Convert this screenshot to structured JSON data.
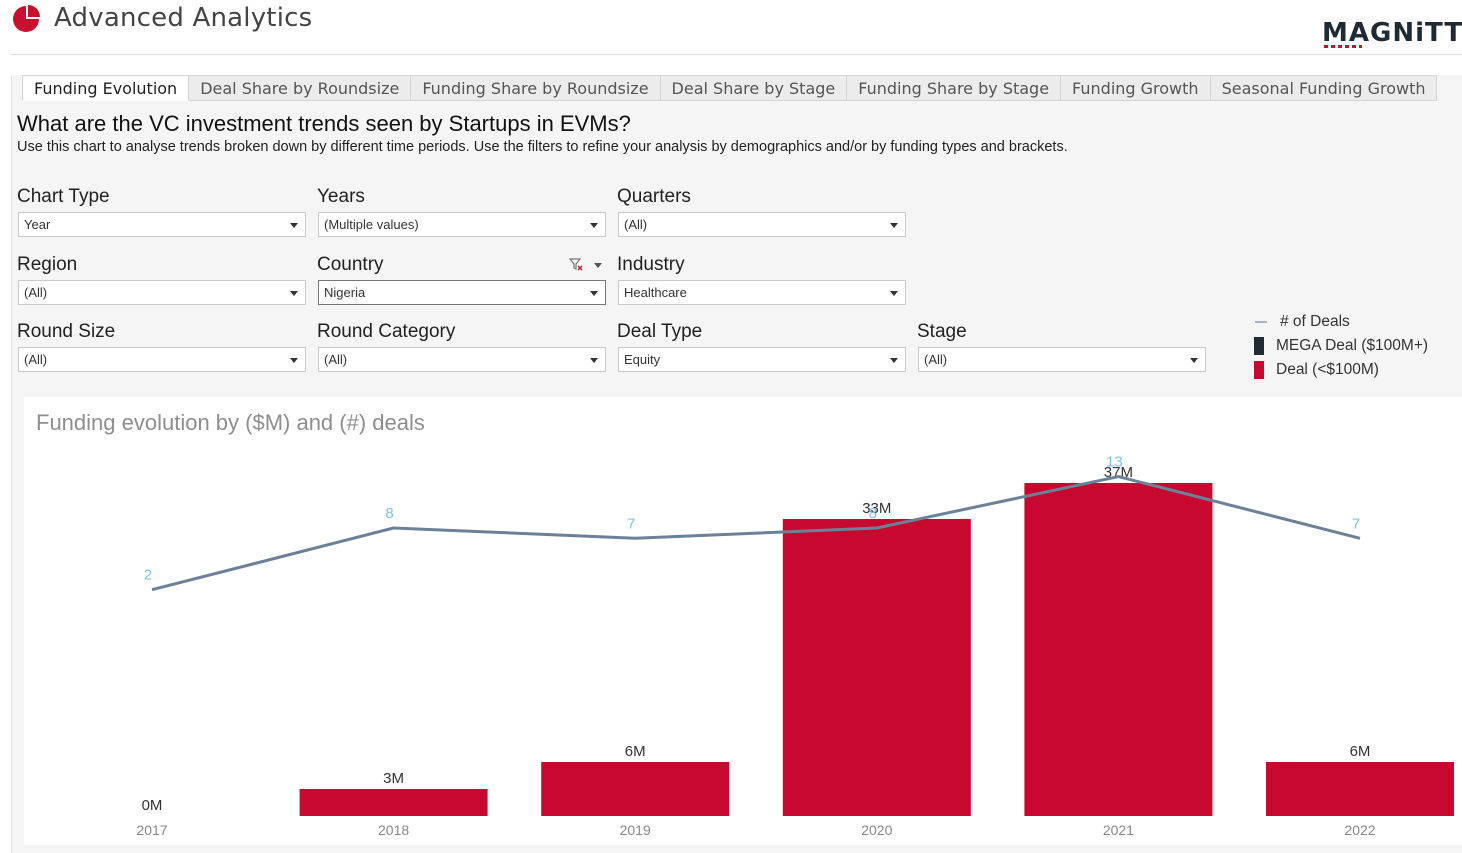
{
  "header": {
    "title": "Advanced Analytics",
    "brand": "MAGNiTT"
  },
  "tabs": [
    {
      "label": "Funding Evolution",
      "active": true
    },
    {
      "label": "Deal Share by Roundsize",
      "active": false
    },
    {
      "label": "Funding Share by Roundsize",
      "active": false
    },
    {
      "label": "Deal Share by Stage",
      "active": false
    },
    {
      "label": "Funding Share by Stage",
      "active": false
    },
    {
      "label": "Funding Growth",
      "active": false
    },
    {
      "label": "Seasonal Funding Growth",
      "active": false
    }
  ],
  "intro": {
    "question": "What are the VC investment trends seen by Startups in EVMs?",
    "description": "Use this chart to analyse trends broken down by different time periods. Use the filters to refine your analysis by demographics and/or by funding types and brackets."
  },
  "filters": {
    "chart_type": {
      "label": "Chart Type",
      "value": "Year"
    },
    "years": {
      "label": "Years",
      "value": "(Multiple values)"
    },
    "quarters": {
      "label": "Quarters",
      "value": "(All)"
    },
    "region": {
      "label": "Region",
      "value": "(All)"
    },
    "country": {
      "label": "Country",
      "value": "Nigeria"
    },
    "industry": {
      "label": "Industry",
      "value": "Healthcare"
    },
    "round_size": {
      "label": "Round Size",
      "value": "(All)"
    },
    "round_category": {
      "label": "Round Category",
      "value": "(All)"
    },
    "deal_type": {
      "label": "Deal Type",
      "value": "Equity"
    },
    "stage": {
      "label": "Stage",
      "value": "(All)"
    }
  },
  "legend": {
    "deals_label": "# of Deals",
    "mega_label": "MEGA Deal ($100M+)",
    "deal_label": "Deal (<$100M)",
    "colors": {
      "deals_line": "#6b8199",
      "mega": "#1f2a33",
      "deal": "#c8092f",
      "deal_count_text": "#7ec3e0"
    }
  },
  "chart_data": {
    "type": "bar",
    "title": "Funding evolution by ($M) and (#) deals",
    "categories": [
      "2017",
      "2018",
      "2019",
      "2020",
      "2021",
      "2022"
    ],
    "series": [
      {
        "name": "Deal (<$100M)",
        "type": "bar",
        "values": [
          0,
          3,
          6,
          33,
          37,
          6
        ],
        "labels": [
          "0M",
          "3M",
          "6M",
          "33M",
          "37M",
          "6M"
        ]
      },
      {
        "name": "MEGA Deal ($100M+)",
        "type": "bar",
        "values": [
          0,
          0,
          0,
          0,
          0,
          0
        ]
      },
      {
        "name": "# of Deals",
        "type": "line",
        "values": [
          2,
          8,
          7,
          8,
          13,
          7
        ]
      }
    ],
    "ylim": [
      0,
      40
    ],
    "y2lim": [
      -20,
      15
    ],
    "grid": false,
    "legend": "top-right"
  }
}
